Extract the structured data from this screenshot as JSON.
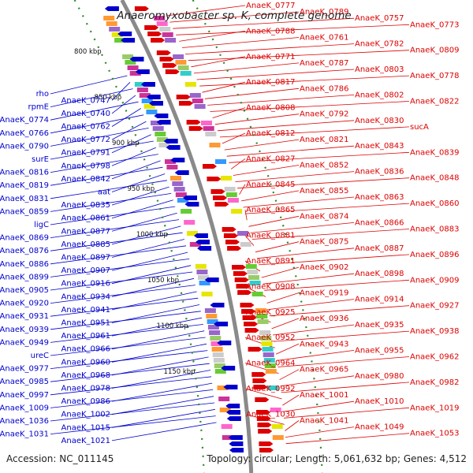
{
  "title": "Anaeromyxobacter sp. K, complete genome",
  "footer": {
    "accession": "Accession: NC_011145",
    "topology": "Topology: circular; Length: 5,061,632 bp; Genes: 4,512"
  },
  "colors": {
    "forward": "#dd0000",
    "reverse": "#0000cc",
    "backbone": "#8a8a8a",
    "tick": "#2a8a2a"
  },
  "scale_ticks": [
    "800 kbp",
    "850 kbp",
    "900 kbp",
    "950 kbp",
    "1000 kbp",
    "1050 kbp",
    "1100 kbp",
    "1150 kbp"
  ],
  "left_labels": [
    "rho",
    "AnaeK_0747",
    "rpmE",
    "AnaeK_0740",
    "AnaeK_0774",
    "AnaeK_0762",
    "AnaeK_0766",
    "AnaeK_0772",
    "AnaeK_0790",
    "AnaeK_0791",
    "surE",
    "AnaeK_0798",
    "AnaeK_0816",
    "AnaeK_0842",
    "AnaeK_0819",
    "aat",
    "AnaeK_0831",
    "AnaeK_0835",
    "AnaeK_0859",
    "AnaeK_0861",
    "ligC",
    "AnaeK_0877",
    "AnaeK_0869",
    "AnaeK_0885",
    "AnaeK_0876",
    "AnaeK_0897",
    "AnaeK_0886",
    "AnaeK_0907",
    "AnaeK_0899",
    "AnaeK_0916",
    "AnaeK_0905",
    "AnaeK_0934",
    "AnaeK_0920",
    "AnaeK_0941",
    "AnaeK_0931",
    "AnaeK_0951",
    "AnaeK_0939",
    "AnaeK_0961",
    "AnaeK_0949",
    "AnaeK_0966",
    "ureC",
    "AnaeK_0960",
    "AnaeK_0977",
    "AnaeK_0968",
    "AnaeK_0985",
    "AnaeK_0978",
    "AnaeK_0997",
    "AnaeK_0986",
    "AnaeK_1009",
    "AnaeK_1002",
    "AnaeK_1036",
    "AnaeK_1015",
    "AnaeK_1031",
    "AnaeK_1021"
  ],
  "right_labels": [
    "AnaeK_0777",
    "AnaeK_0789",
    "AnaeK_0757",
    "AnaeK_0773",
    "AnaeK_0788",
    "AnaeK_0761",
    "AnaeK_0782",
    "AnaeK_0809",
    "AnaeK_0771",
    "AnaeK_0787",
    "AnaeK_0803",
    "AnaeK_0778",
    "AnaeK_0817",
    "AnaeK_0786",
    "AnaeK_0802",
    "AnaeK_0822",
    "AnaeK_0808",
    "AnaeK_0792",
    "AnaeK_0830",
    "sucA",
    "AnaeK_0812",
    "AnaeK_0821",
    "AnaeK_0843",
    "AnaeK_0839",
    "AnaeK_0827",
    "AnaeK_0852",
    "AnaeK_0836",
    "AnaeK_0848",
    "AnaeK_0845",
    "AnaeK_0855",
    "AnaeK_0863",
    "AnaeK_0860",
    "AnaeK_0865",
    "AnaeK_0874",
    "AnaeK_0866",
    "AnaeK_0883",
    "AnaeK_0881",
    "AnaeK_0875",
    "AnaeK_0887",
    "AnaeK_0896",
    "AnaeK_0891",
    "AnaeK_0902",
    "AnaeK_0898",
    "AnaeK_0909",
    "AnaeK_0908",
    "AnaeK_0919",
    "AnaeK_0914",
    "AnaeK_0927",
    "AnaeK_0925",
    "AnaeK_0936",
    "AnaeK_0935",
    "AnaeK_0938",
    "AnaeK_0952",
    "AnaeK_0943",
    "AnaeK_0955",
    "AnaeK_0962",
    "AnaeK_0964",
    "AnaeK_0965",
    "AnaeK_0980",
    "AnaeK_0982",
    "AnaeK_0992",
    "AnaeK_1001",
    "AnaeK_1010",
    "AnaeK_1019",
    "AnaeK_1030",
    "AnaeK_1041",
    "AnaeK_1049",
    "AnaeK_1053"
  ]
}
